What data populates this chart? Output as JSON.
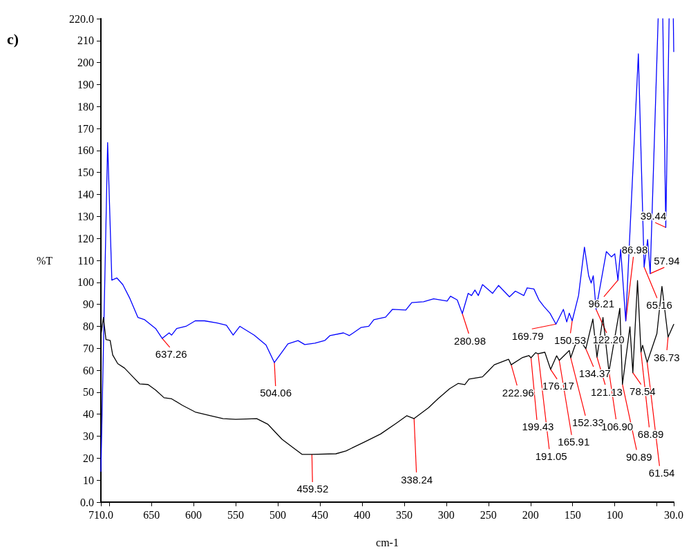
{
  "chart_data": {
    "type": "line",
    "xlabel": "cm-1",
    "ylabel": "%T",
    "marker": "none",
    "line_style": "solid",
    "grid": false,
    "xlim": [
      710,
      30
    ],
    "ylim": [
      0,
      220
    ],
    "xticks": [
      {
        "value": 710,
        "label": "710.0"
      },
      {
        "value": 700,
        "label": null
      },
      650,
      600,
      550,
      500,
      450,
      400,
      350,
      300,
      250,
      200,
      150,
      100,
      {
        "value": 50,
        "label": null
      },
      {
        "value": 30,
        "label": "30.0"
      }
    ],
    "yticks": [
      {
        "value": 0,
        "label": "0.0"
      },
      10,
      20,
      30,
      40,
      50,
      60,
      70,
      80,
      90,
      100,
      110,
      120,
      130,
      140,
      150,
      160,
      170,
      180,
      190,
      200,
      210,
      {
        "value": 220,
        "label": "220.0"
      }
    ],
    "series": [
      {
        "color": "#0000ff",
        "x": [
          710,
          702,
          697,
          691,
          684,
          676,
          666,
          658,
          645,
          637.26,
          629,
          626,
          620,
          609,
          598,
          587,
          572,
          561,
          553,
          545,
          528,
          514,
          504.06,
          488,
          476,
          468,
          456,
          444,
          438,
          422,
          415,
          401,
          392,
          386,
          372,
          364,
          348,
          341,
          327,
          315,
          299,
          295,
          287,
          280.98,
          274,
          270,
          266,
          262,
          257,
          245,
          238,
          225,
          218,
          208,
          204,
          196,
          190,
          184,
          177,
          169.79,
          161,
          157,
          154,
          150.53,
          143,
          136,
          131,
          128,
          125.5,
          122.2,
          110,
          104,
          100,
          96.21,
          93,
          86.98,
          72,
          65.16,
          61,
          57.94,
          48.5,
          46,
          43,
          39.44,
          35.5,
          33,
          30.5,
          30
        ],
        "values": [
          14,
          163.6,
          101,
          102,
          99,
          93,
          84,
          83,
          79,
          74.5,
          77,
          76,
          79,
          80,
          82.5,
          82.5,
          81.5,
          80.5,
          76,
          80,
          76,
          71.5,
          63.5,
          72,
          73.5,
          71.7,
          72.3,
          73.6,
          75.8,
          77,
          75.8,
          79.5,
          80,
          83,
          84.2,
          87.7,
          87.4,
          90.8,
          91.2,
          92.5,
          91.5,
          93.7,
          92,
          85.8,
          95,
          94,
          96.5,
          94,
          99,
          95,
          98.6,
          93.4,
          96,
          94,
          97.5,
          97,
          92,
          89,
          86,
          81,
          87.7,
          82,
          86,
          82.5,
          94,
          116,
          103,
          99.7,
          103,
          87.7,
          114,
          111.6,
          113,
          101,
          115,
          82.4,
          204,
          107,
          119.5,
          104,
          220,
          null,
          220,
          125,
          220,
          null,
          220,
          205
        ]
      },
      {
        "color": "#000000",
        "x": [
          710,
          707,
          704,
          699,
          696,
          690,
          682,
          671,
          664,
          654,
          645,
          635,
          626,
          613,
          598,
          580,
          565,
          550,
          525,
          512,
          495,
          482,
          471,
          459.52,
          431,
          419,
          397,
          378,
          359,
          347,
          338.24,
          321,
          310,
          296,
          286,
          278,
          273,
          257,
          250,
          243,
          226,
          222.96,
          210,
          202,
          199.43,
          194,
          191.05,
          183,
          176.17,
          169,
          165.91,
          154,
          152.33,
          147,
          141,
          134.37,
          126,
          121.13,
          114,
          106.9,
          94,
          90.89,
          82,
          78.54,
          73,
          68.89,
          67,
          61.54,
          50,
          44,
          36.73,
          30
        ],
        "values": [
          76,
          84,
          74,
          73.6,
          67,
          63,
          61,
          56.6,
          53.8,
          53.5,
          51,
          47.5,
          47,
          44,
          41,
          39.3,
          38,
          37.7,
          38,
          35.5,
          28.6,
          24.8,
          21.7,
          21.7,
          22,
          23.3,
          27.4,
          31,
          36,
          39.3,
          38,
          43,
          47,
          51.6,
          54,
          53.5,
          56,
          57,
          59.7,
          62.5,
          65,
          62.5,
          65.7,
          66.7,
          65.7,
          68,
          67.5,
          68.2,
          60.4,
          66.6,
          64.5,
          69,
          65.7,
          71.4,
          73.5,
          69.8,
          83.3,
          66,
          84,
          59.4,
          88.2,
          53.6,
          79.8,
          58.9,
          100.8,
          68.3,
          71.4,
          63.6,
          76.7,
          98.2,
          75.1,
          80.9
        ]
      }
    ],
    "annotations": [
      "c)",
      {
        "text": "637.26",
        "x": 637.26,
        "y": 74.5
      },
      {
        "text": "504.06",
        "x": 504.06,
        "y": 63.5
      },
      {
        "text": "459.52",
        "x": 459.52,
        "y": 21.7
      },
      {
        "text": "338.24",
        "x": 338.24,
        "y": 38
      },
      {
        "text": "280.98",
        "x": 280.98,
        "y": 85.8
      },
      {
        "text": "222.96",
        "x": 222.96,
        "y": 62.5
      },
      {
        "text": "199.43",
        "x": 199.43,
        "y": 65.7
      },
      {
        "text": "191.05",
        "x": 191.05,
        "y": 67.5
      },
      {
        "text": "176.17",
        "x": 176.17,
        "y": 60.4
      },
      {
        "text": "169.79",
        "x": 169.79,
        "y": 81
      },
      {
        "text": "165.91",
        "x": 165.91,
        "y": 64.5
      },
      {
        "text": "152.33",
        "x": 152.33,
        "y": 65.7
      },
      {
        "text": "150.53",
        "x": 150.53,
        "y": 82.5
      },
      {
        "text": "134.37",
        "x": 134.37,
        "y": 69.8
      },
      {
        "text": "122.20",
        "x": 122.2,
        "y": 87.7
      },
      {
        "text": "121.13",
        "x": 121.13,
        "y": 66
      },
      {
        "text": "106.90",
        "x": 106.9,
        "y": 59.4
      },
      {
        "text": "96.21",
        "x": 96.21,
        "y": 101
      },
      {
        "text": "90.89",
        "x": 90.89,
        "y": 53.6
      },
      {
        "text": "86.98",
        "x": 86.98,
        "y": 82.4
      },
      {
        "text": "78.54",
        "x": 78.54,
        "y": 58.9
      },
      {
        "text": "68.89",
        "x": 68.89,
        "y": 68.3
      },
      {
        "text": "65.16",
        "x": 65.16,
        "y": 107
      },
      {
        "text": "61.54",
        "x": 61.54,
        "y": 63.6
      },
      {
        "text": "57.94",
        "x": 57.94,
        "y": 104
      },
      {
        "text": "39.44",
        "x": 39.44,
        "y": 125
      },
      {
        "text": "36.73",
        "x": 36.73,
        "y": 75.1
      }
    ]
  }
}
